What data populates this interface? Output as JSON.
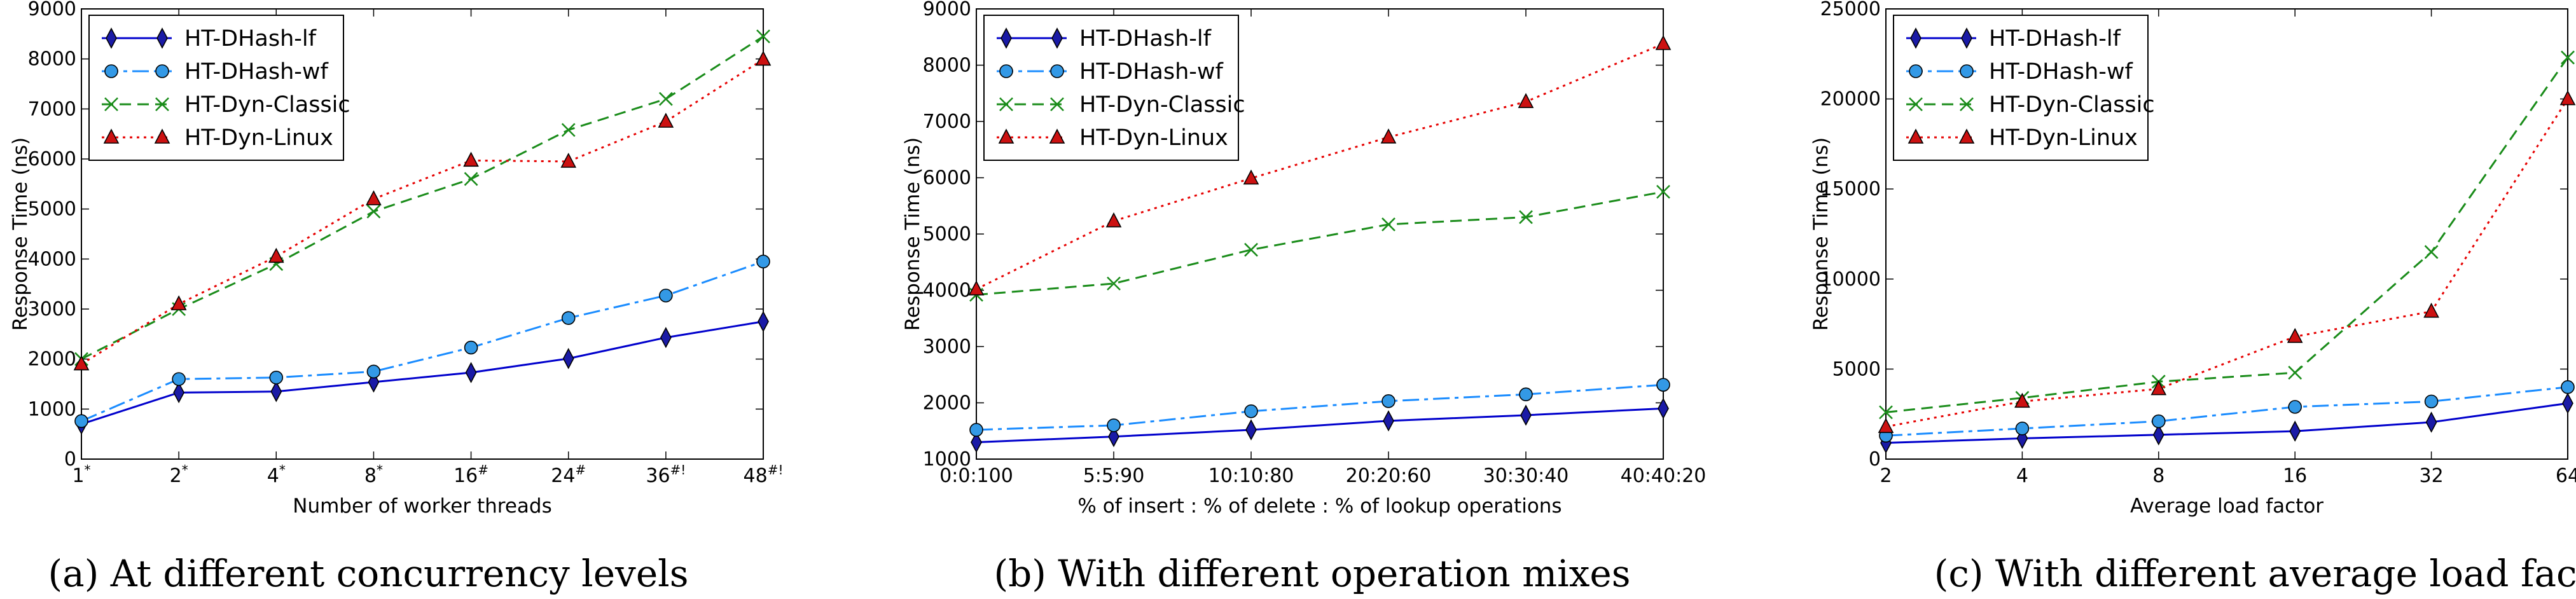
{
  "chart_data": [
    {
      "type": "line",
      "caption": "(a) At different concurrency levels",
      "xlabel": "Number of worker threads",
      "ylabel": "Response Time (ns)",
      "categories": [
        {
          "base": "1",
          "sup": "*"
        },
        {
          "base": "2",
          "sup": "*"
        },
        {
          "base": "4",
          "sup": "*"
        },
        {
          "base": "8",
          "sup": "*"
        },
        {
          "base": "16",
          "sup": "#"
        },
        {
          "base": "24",
          "sup": "#"
        },
        {
          "base": "36",
          "sup": "#!"
        },
        {
          "base": "48",
          "sup": "#!"
        }
      ],
      "ylim": [
        0,
        9000
      ],
      "yticks": [
        0,
        1000,
        2000,
        3000,
        4000,
        5000,
        6000,
        7000,
        8000,
        9000
      ],
      "legend_position": "top-left",
      "grid": false,
      "series": [
        {
          "name": "HT-DHash-lf",
          "values": [
            700,
            1330,
            1350,
            1540,
            1730,
            2010,
            2430,
            2750
          ]
        },
        {
          "name": "HT-DHash-wf",
          "values": [
            760,
            1600,
            1630,
            1750,
            2230,
            2820,
            3270,
            3950
          ]
        },
        {
          "name": "HT-Dyn-Classic",
          "values": [
            2000,
            3000,
            3900,
            4950,
            5600,
            6580,
            7200,
            8450
          ]
        },
        {
          "name": "HT-Dyn-Linux",
          "values": [
            1900,
            3100,
            4050,
            5200,
            5970,
            5950,
            6750,
            7990
          ]
        }
      ]
    },
    {
      "type": "line",
      "caption": "(b) With different operation mixes",
      "xlabel": "% of insert : % of delete : % of lookup operations",
      "ylabel": "Response Time (ns)",
      "categories": [
        {
          "base": "0:0:100",
          "sup": ""
        },
        {
          "base": "5:5:90",
          "sup": ""
        },
        {
          "base": "10:10:80",
          "sup": ""
        },
        {
          "base": "20:20:60",
          "sup": ""
        },
        {
          "base": "30:30:40",
          "sup": ""
        },
        {
          "base": "40:40:20",
          "sup": ""
        }
      ],
      "ylim": [
        1000,
        9000
      ],
      "yticks": [
        1000,
        2000,
        3000,
        4000,
        5000,
        6000,
        7000,
        8000,
        9000
      ],
      "legend_position": "top-left",
      "grid": false,
      "series": [
        {
          "name": "HT-DHash-lf",
          "values": [
            1300,
            1400,
            1520,
            1680,
            1780,
            1900
          ]
        },
        {
          "name": "HT-DHash-wf",
          "values": [
            1520,
            1600,
            1850,
            2030,
            2150,
            2320
          ]
        },
        {
          "name": "HT-Dyn-Classic",
          "values": [
            3920,
            4120,
            4720,
            5170,
            5300,
            5750
          ]
        },
        {
          "name": "HT-Dyn-Linux",
          "values": [
            4020,
            5230,
            5990,
            6720,
            7350,
            8380
          ]
        }
      ]
    },
    {
      "type": "line",
      "caption": "(c) With different average load factors",
      "xlabel": "Average load factor",
      "ylabel": "Response Time (ns)",
      "categories": [
        {
          "base": "2",
          "sup": ""
        },
        {
          "base": "4",
          "sup": ""
        },
        {
          "base": "8",
          "sup": ""
        },
        {
          "base": "16",
          "sup": ""
        },
        {
          "base": "32",
          "sup": ""
        },
        {
          "base": "64",
          "sup": ""
        }
      ],
      "ylim": [
        0,
        25000
      ],
      "yticks": [
        0,
        5000,
        10000,
        15000,
        20000,
        25000
      ],
      "legend_position": "top-left",
      "grid": false,
      "series": [
        {
          "name": "HT-DHash-lf",
          "values": [
            900,
            1150,
            1350,
            1550,
            2050,
            3100
          ]
        },
        {
          "name": "HT-DHash-wf",
          "values": [
            1300,
            1700,
            2100,
            2900,
            3200,
            4000
          ]
        },
        {
          "name": "HT-Dyn-Classic",
          "values": [
            2600,
            3400,
            4300,
            4800,
            11500,
            22300
          ]
        },
        {
          "name": "HT-Dyn-Linux",
          "values": [
            1800,
            3200,
            3900,
            6800,
            8200,
            20000
          ]
        }
      ]
    }
  ],
  "styles": [
    {
      "color": "#0000cc",
      "marker": "diamond",
      "markerFill": "#1a1aa6",
      "dash": ""
    },
    {
      "color": "#1a8cff",
      "marker": "circle",
      "markerFill": "#3399e6",
      "dash": "26 8 6 8"
    },
    {
      "color": "#1a8c1a",
      "marker": "x",
      "markerFill": "none",
      "dash": "18 10"
    },
    {
      "color": "#e60000",
      "marker": "triangle",
      "markerFill": "#cc1111",
      "dash": "4 7"
    }
  ]
}
